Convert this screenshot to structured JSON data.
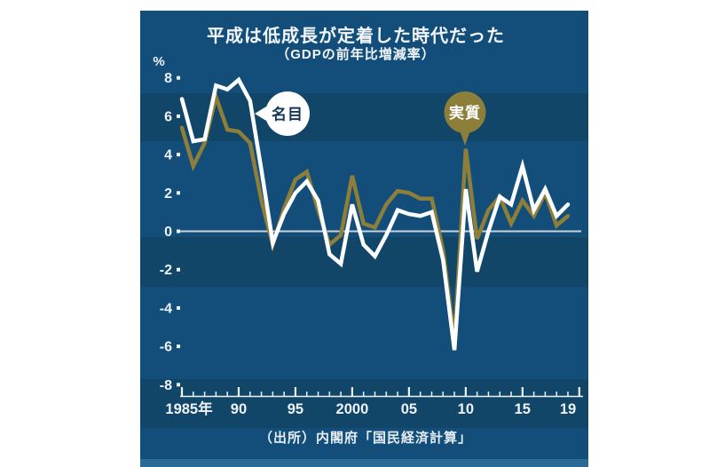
{
  "title": "平成は低成長が定着した時代だった",
  "subtitle": "（GDPの前年比増減率）",
  "y_unit": "%",
  "source": "（出所）内閣府「国民経済計算」",
  "series_labels": {
    "nominal": "名目",
    "real": "実質"
  },
  "colors": {
    "panel_bg": "#134E7A",
    "band_dark": "#114669",
    "bottom_strip": "#2B6A93",
    "nominal_line": "#FBFDFE",
    "real_line": "#8D7E3A",
    "zero_line": "#C9D3DA",
    "text": "#EDF3F7",
    "bubble_text_dark": "#12375A"
  },
  "chart_data": {
    "type": "line",
    "title": "平成は低成長が定着した時代だった",
    "subtitle": "（GDPの前年比増減率）",
    "ylabel": "%",
    "ylim": [
      -8,
      8
    ],
    "y_ticks": [
      8,
      6,
      4,
      2,
      0,
      -2,
      -4,
      -6,
      -8
    ],
    "grid": "zero-line-only",
    "legend_position": "inline-bubbles",
    "x_years": [
      1985,
      1986,
      1987,
      1988,
      1989,
      1990,
      1991,
      1992,
      1993,
      1994,
      1995,
      1996,
      1997,
      1998,
      1999,
      2000,
      2001,
      2002,
      2003,
      2004,
      2005,
      2006,
      2007,
      2008,
      2009,
      2010,
      2011,
      2012,
      2013,
      2014,
      2015,
      2016,
      2017,
      2018,
      2019
    ],
    "x_tick_years": [
      1985,
      1990,
      1995,
      2000,
      2005,
      2010,
      2015,
      2019
    ],
    "x_tick_labels": [
      "1985年",
      "90",
      "95",
      "2000",
      "05",
      "10",
      "15",
      "19"
    ],
    "x_minor_tick_range": [
      1985,
      2020
    ],
    "series": [
      {
        "name": "名目",
        "color_key": "nominal_line",
        "values": [
          6.9,
          4.7,
          4.8,
          7.6,
          7.4,
          7.9,
          6.8,
          3.2,
          -0.6,
          0.9,
          2.0,
          2.6,
          1.6,
          -1.2,
          -1.7,
          1.4,
          -0.7,
          -1.3,
          -0.2,
          1.1,
          0.9,
          0.8,
          1.0,
          -1.5,
          -6.2,
          2.2,
          -2.1,
          0.0,
          1.8,
          1.4,
          3.4,
          1.1,
          2.2,
          0.8,
          1.4
        ]
      },
      {
        "name": "実質",
        "color_key": "real_line",
        "values": [
          5.4,
          3.4,
          4.6,
          7.0,
          5.3,
          5.2,
          4.6,
          1.6,
          -0.7,
          1.2,
          2.7,
          3.1,
          1.1,
          -0.7,
          -0.2,
          2.9,
          0.4,
          0.2,
          1.4,
          2.1,
          2.0,
          1.7,
          1.7,
          -1.0,
          -5.7,
          4.3,
          -0.4,
          1.1,
          1.8,
          0.4,
          1.6,
          0.8,
          2.0,
          0.3,
          0.8
        ]
      }
    ]
  }
}
